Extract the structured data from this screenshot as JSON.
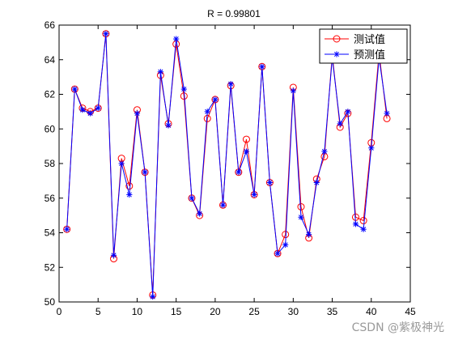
{
  "chart_data": {
    "type": "line",
    "title": "R = 0.99801",
    "xlabel": "",
    "ylabel": "",
    "xlim": [
      0,
      45
    ],
    "ylim": [
      50,
      66
    ],
    "xticks": [
      0,
      5,
      10,
      15,
      20,
      25,
      30,
      35,
      40,
      45
    ],
    "yticks": [
      50,
      52,
      54,
      56,
      58,
      60,
      62,
      64,
      66
    ],
    "grid": false,
    "legend_position": "top-right",
    "x": [
      1,
      2,
      3,
      4,
      5,
      6,
      7,
      8,
      9,
      10,
      11,
      12,
      13,
      14,
      15,
      16,
      17,
      18,
      19,
      20,
      21,
      22,
      23,
      24,
      25,
      26,
      27,
      28,
      29,
      30,
      31,
      32,
      33,
      34,
      35,
      36,
      37,
      38,
      39,
      40,
      41,
      42
    ],
    "series": [
      {
        "name": "测试值",
        "color": "#ff0000",
        "marker": "circle",
        "values": [
          54.2,
          62.3,
          61.2,
          61.0,
          61.2,
          65.5,
          52.5,
          58.3,
          56.7,
          61.1,
          57.5,
          50.4,
          63.1,
          60.3,
          64.9,
          61.9,
          56.0,
          55.0,
          60.6,
          61.7,
          55.6,
          62.5,
          57.5,
          59.4,
          56.2,
          63.6,
          56.9,
          52.8,
          53.9,
          62.4,
          55.5,
          53.7,
          57.1,
          58.4,
          64.3,
          60.1,
          60.9,
          54.9,
          54.7,
          59.2,
          64.4,
          60.6
        ]
      },
      {
        "name": "预测值",
        "color": "#0000ff",
        "marker": "star",
        "values": [
          54.2,
          62.3,
          61.1,
          60.9,
          61.2,
          65.5,
          52.7,
          58.0,
          56.2,
          60.9,
          57.5,
          50.3,
          63.3,
          60.2,
          65.2,
          62.3,
          56.0,
          55.1,
          61.0,
          61.7,
          55.6,
          62.6,
          57.5,
          58.7,
          56.2,
          63.6,
          56.9,
          52.8,
          53.3,
          62.2,
          54.9,
          53.9,
          56.9,
          58.7,
          64.1,
          60.3,
          61.0,
          54.5,
          54.2,
          58.9,
          64.1,
          60.9
        ]
      }
    ]
  },
  "watermark": "CSDN @紫极神光"
}
